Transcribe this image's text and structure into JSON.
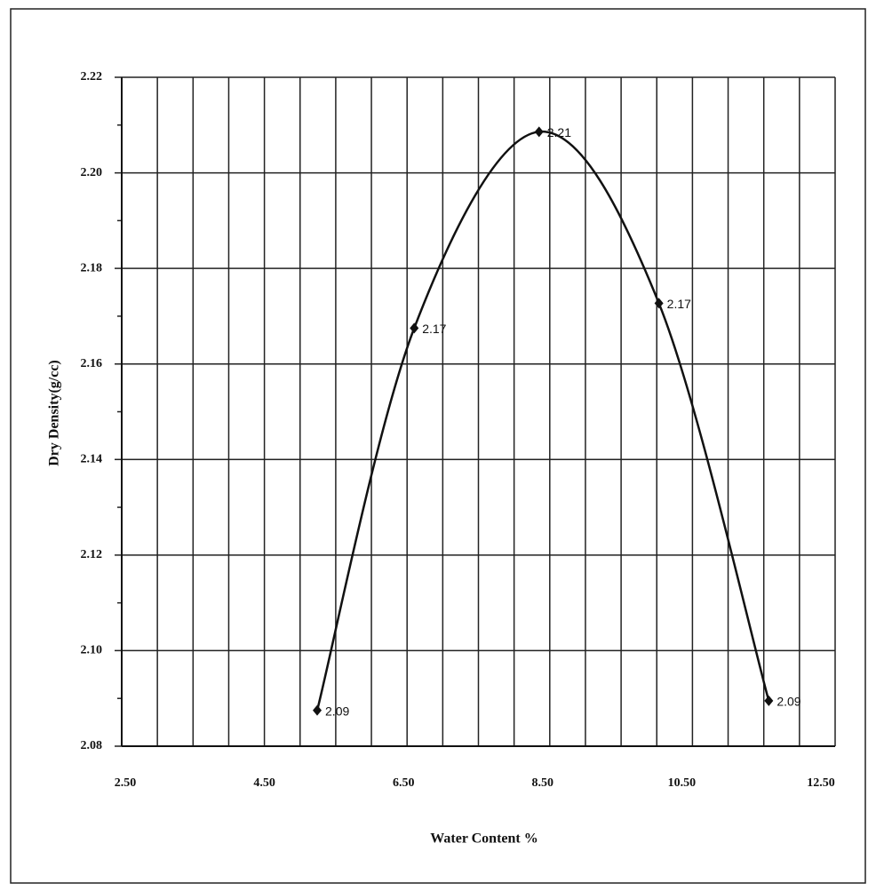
{
  "chart_data": {
    "type": "line",
    "x_label": "Water Content %",
    "y_label": "Dry Density(g/cc)",
    "x": [
      5.24,
      6.6,
      8.35,
      10.03,
      11.57
    ],
    "values": [
      2.0875,
      2.1675,
      2.2086,
      2.1727,
      2.0895
    ],
    "value_labels": [
      "2.09",
      "2.17",
      "2.21",
      "2.17",
      "2.09"
    ],
    "color": "#111111",
    "xlim": [
      2.5,
      12.5
    ],
    "xticks": [
      {
        "value": 2.5,
        "label": "2.50"
      },
      {
        "value": 4.5,
        "label": "4.50"
      },
      {
        "value": 6.5,
        "label": "6.50"
      },
      {
        "value": 8.5,
        "label": "8.50"
      },
      {
        "value": 10.5,
        "label": "10.50"
      },
      {
        "value": 12.5,
        "label": "12.50"
      }
    ],
    "ylim": [
      2.08,
      2.22
    ],
    "yticks": [
      2.08,
      {
        "value": 2.1,
        "label": "2.10"
      },
      2.12,
      2.14,
      2.16,
      2.18,
      {
        "value": 2.2,
        "label": "2.20"
      },
      2.22
    ],
    "grid": true
  }
}
